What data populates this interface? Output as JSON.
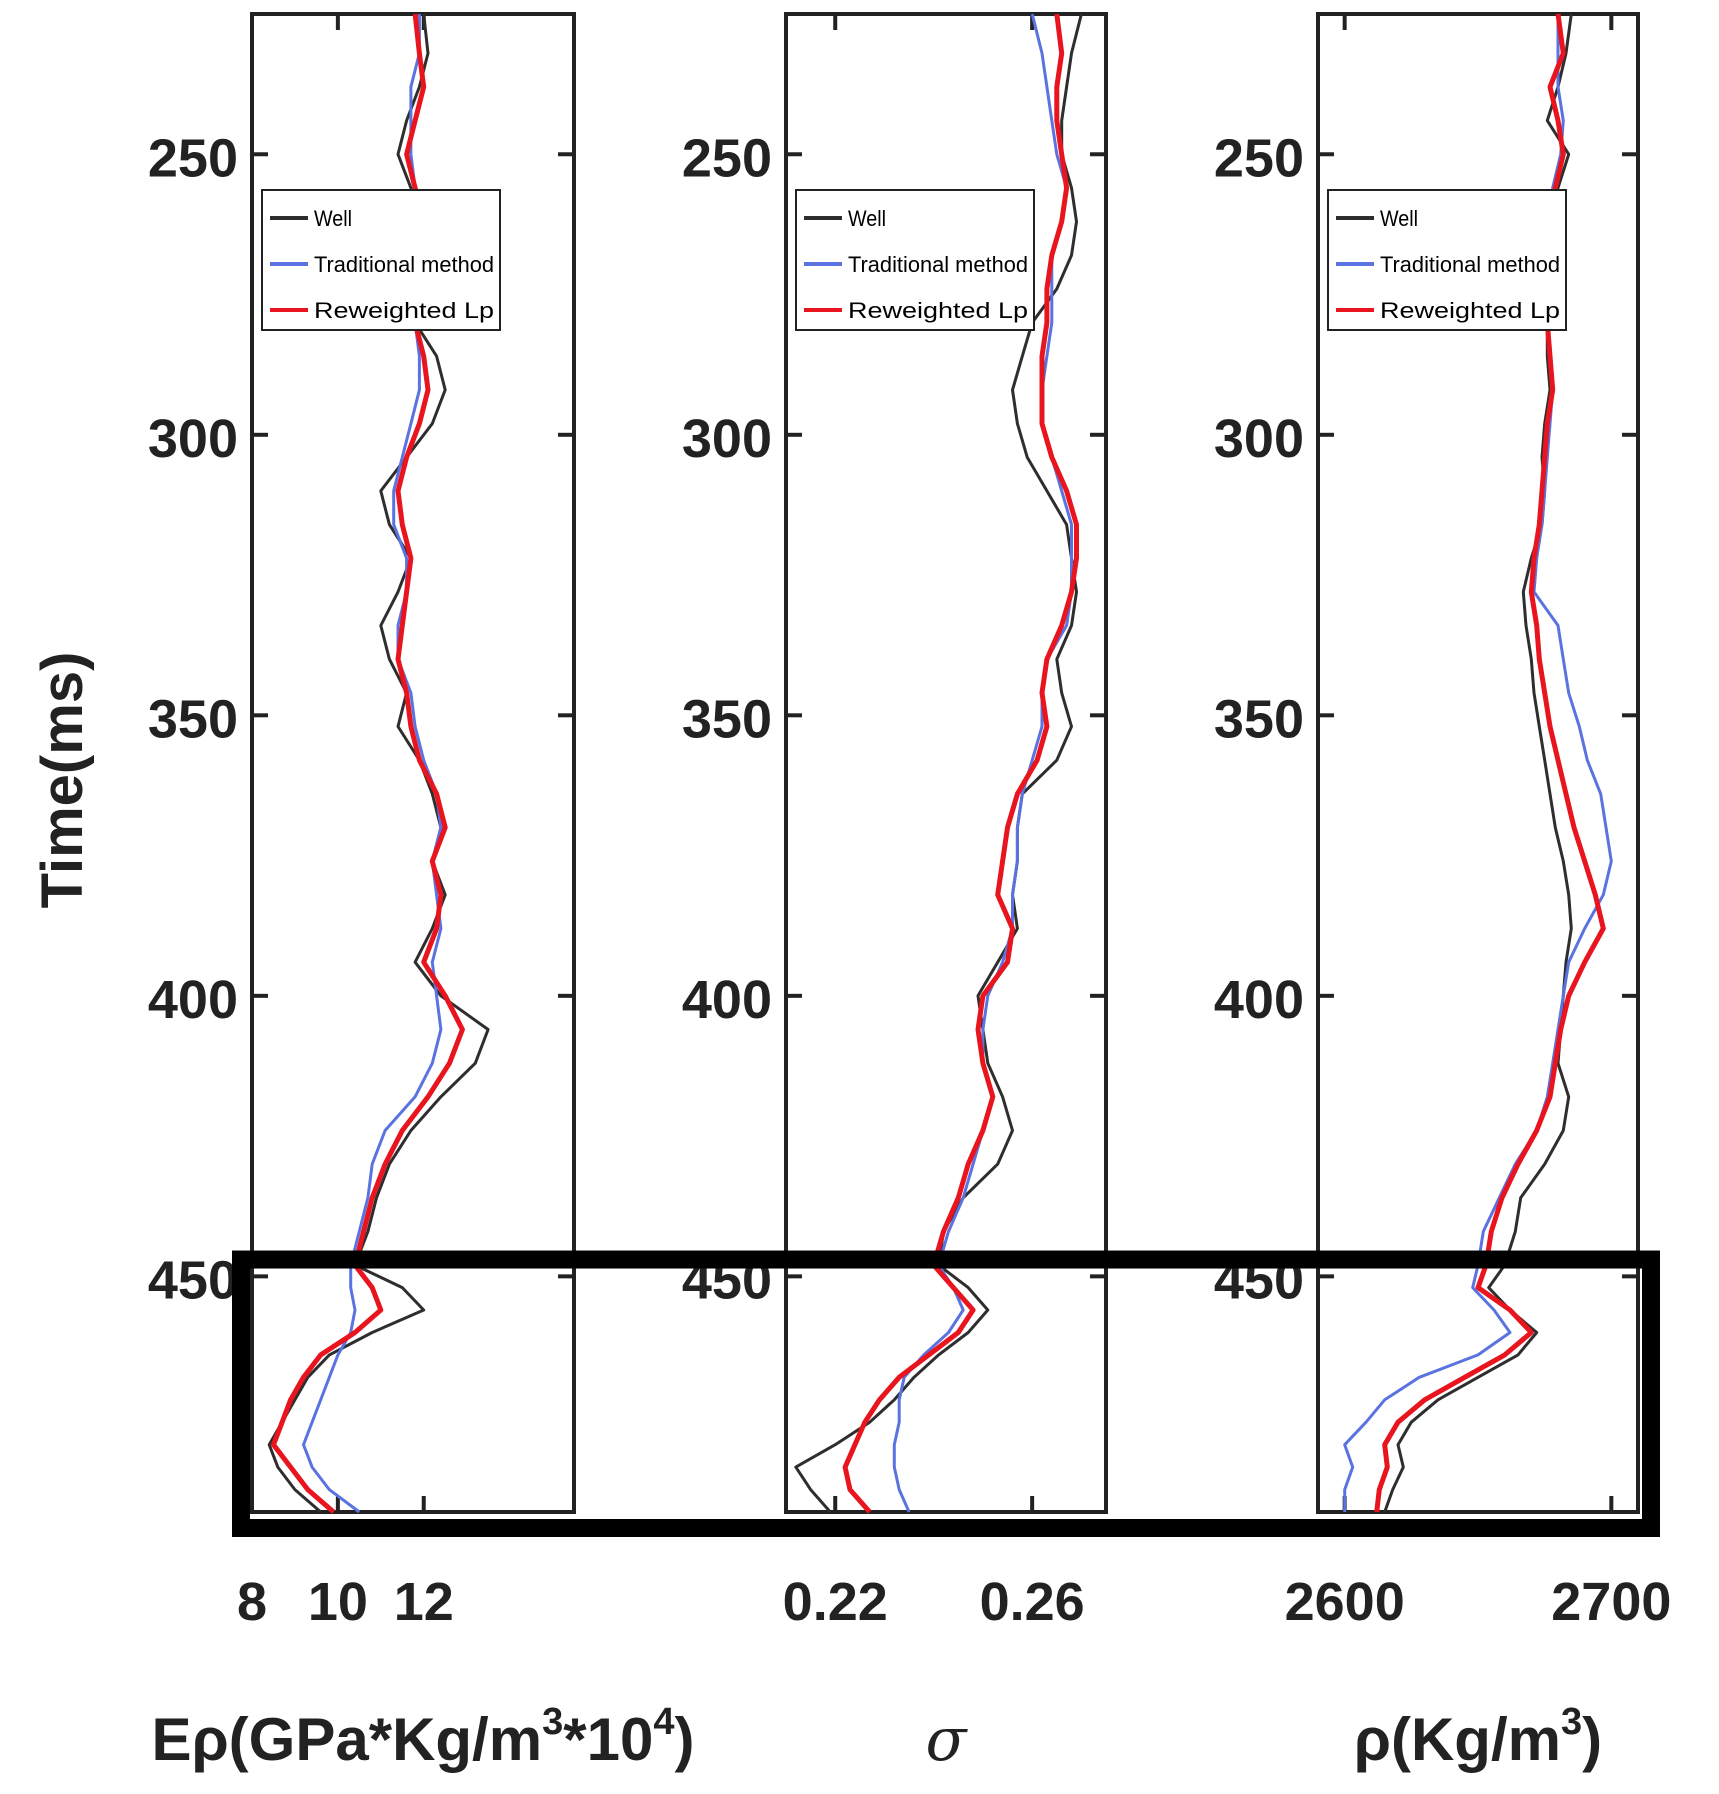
{
  "chart_data": {
    "type": "line",
    "ylabel": "Time(ms)",
    "y_range_ms": [
      225,
      492
    ],
    "y_ticks": [
      250,
      300,
      350,
      400,
      450
    ],
    "y_direction": "downward",
    "highlight_box_ms": [
      447,
      492
    ],
    "legend_entries": [
      "Well",
      "Traditional method",
      "Reweighted Lp"
    ],
    "series_colors": {
      "Well": "#2e2e2e",
      "Traditional method": "#5a73e0",
      "Reweighted Lp": "#e8141e"
    },
    "panels": [
      {
        "id": "e-rho",
        "xlabel_main": "Eρ(GPa*Kg/m",
        "xlabel_sup1": "3",
        "xlabel_mid": "*10",
        "xlabel_sup2": "4",
        "xlabel_end": ")",
        "x_range": [
          8,
          15.5
        ],
        "x_ticks": [
          8,
          10,
          12
        ],
        "x_tick_labels": [
          "8",
          "10",
          "12"
        ],
        "legend_placement": "top-left",
        "time": [
          225,
          232,
          238,
          244,
          250,
          256,
          262,
          268,
          274,
          280,
          286,
          292,
          298,
          304,
          310,
          316,
          322,
          328,
          334,
          340,
          346,
          352,
          358,
          364,
          370,
          376,
          382,
          388,
          394,
          400,
          406,
          412,
          418,
          424,
          430,
          436,
          442,
          448,
          452,
          456,
          460,
          464,
          468,
          472,
          476,
          480,
          484,
          488,
          492
        ],
        "series": [
          {
            "name": "Well",
            "values": [
              12.0,
              12.1,
              11.9,
              11.6,
              11.4,
              11.7,
              12.0,
              11.8,
              11.5,
              11.8,
              12.3,
              12.5,
              12.2,
              11.6,
              11.0,
              11.2,
              11.7,
              11.4,
              11.0,
              11.2,
              11.6,
              11.4,
              11.9,
              12.2,
              12.4,
              12.2,
              12.5,
              12.2,
              11.8,
              12.4,
              13.5,
              13.2,
              12.4,
              11.7,
              11.2,
              10.9,
              10.7,
              10.4,
              11.5,
              12.0,
              10.8,
              9.8,
              9.3,
              9.0,
              8.7,
              8.4,
              8.6,
              9.0,
              9.6
            ]
          },
          {
            "name": "Traditional method",
            "values": [
              11.9,
              11.9,
              11.7,
              11.7,
              11.7,
              11.8,
              11.9,
              11.9,
              11.8,
              11.8,
              11.9,
              11.9,
              11.7,
              11.5,
              11.3,
              11.3,
              11.6,
              11.6,
              11.4,
              11.4,
              11.7,
              11.8,
              12.0,
              12.3,
              12.4,
              12.2,
              12.3,
              12.4,
              12.2,
              12.3,
              12.4,
              12.2,
              11.8,
              11.1,
              10.8,
              10.7,
              10.5,
              10.3,
              10.3,
              10.4,
              10.3,
              10.0,
              9.8,
              9.6,
              9.4,
              9.2,
              9.4,
              9.8,
              10.5
            ]
          },
          {
            "name": "Reweighted Lp",
            "values": [
              11.8,
              11.9,
              12.0,
              11.8,
              11.6,
              11.8,
              12.0,
              11.9,
              11.8,
              11.8,
              12.0,
              12.1,
              11.9,
              11.6,
              11.4,
              11.5,
              11.7,
              11.6,
              11.5,
              11.4,
              11.6,
              11.7,
              11.9,
              12.3,
              12.5,
              12.2,
              12.4,
              12.3,
              12.0,
              12.5,
              12.9,
              12.6,
              12.1,
              11.5,
              11.1,
              10.8,
              10.6,
              10.4,
              10.8,
              11.0,
              10.4,
              9.6,
              9.2,
              8.9,
              8.7,
              8.5,
              8.9,
              9.3,
              9.9
            ]
          }
        ]
      },
      {
        "id": "sigma",
        "xlabel_main": "σ",
        "x_range": [
          0.21,
          0.275
        ],
        "x_ticks": [
          0.22,
          0.26
        ],
        "x_tick_labels": [
          "0.22",
          "0.26"
        ],
        "legend_placement": "top-left",
        "time": [
          225,
          232,
          238,
          244,
          250,
          256,
          262,
          268,
          274,
          280,
          286,
          292,
          298,
          304,
          310,
          316,
          322,
          328,
          334,
          340,
          346,
          352,
          358,
          364,
          370,
          376,
          382,
          388,
          394,
          400,
          406,
          412,
          418,
          424,
          430,
          436,
          442,
          448,
          452,
          456,
          460,
          464,
          468,
          472,
          476,
          480,
          484,
          488,
          492
        ],
        "series": [
          {
            "name": "Well",
            "values": [
              0.27,
              0.268,
              0.267,
              0.266,
              0.266,
              0.268,
              0.269,
              0.268,
              0.265,
              0.26,
              0.258,
              0.256,
              0.257,
              0.259,
              0.263,
              0.267,
              0.268,
              0.269,
              0.268,
              0.265,
              0.266,
              0.268,
              0.265,
              0.258,
              0.257,
              0.257,
              0.256,
              0.257,
              0.253,
              0.249,
              0.25,
              0.251,
              0.254,
              0.256,
              0.253,
              0.246,
              0.242,
              0.241,
              0.247,
              0.251,
              0.247,
              0.241,
              0.236,
              0.232,
              0.227,
              0.22,
              0.212,
              0.215,
              0.219
            ]
          },
          {
            "name": "Traditional method",
            "values": [
              0.26,
              0.262,
              0.263,
              0.264,
              0.265,
              0.267,
              0.266,
              0.264,
              0.264,
              0.264,
              0.263,
              0.262,
              0.262,
              0.264,
              0.266,
              0.268,
              0.268,
              0.268,
              0.267,
              0.263,
              0.262,
              0.262,
              0.26,
              0.258,
              0.257,
              0.257,
              0.256,
              0.256,
              0.254,
              0.251,
              0.25,
              0.25,
              0.252,
              0.25,
              0.248,
              0.246,
              0.243,
              0.241,
              0.244,
              0.246,
              0.243,
              0.238,
              0.234,
              0.233,
              0.233,
              0.232,
              0.232,
              0.233,
              0.235
            ]
          },
          {
            "name": "Reweighted Lp",
            "values": [
              0.265,
              0.266,
              0.265,
              0.265,
              0.266,
              0.267,
              0.266,
              0.264,
              0.263,
              0.263,
              0.262,
              0.262,
              0.262,
              0.264,
              0.267,
              0.269,
              0.269,
              0.268,
              0.266,
              0.263,
              0.262,
              0.263,
              0.261,
              0.257,
              0.255,
              0.254,
              0.253,
              0.256,
              0.255,
              0.25,
              0.249,
              0.25,
              0.252,
              0.25,
              0.247,
              0.245,
              0.242,
              0.24,
              0.244,
              0.248,
              0.245,
              0.239,
              0.233,
              0.229,
              0.226,
              0.224,
              0.222,
              0.223,
              0.227
            ]
          }
        ]
      },
      {
        "id": "rho",
        "xlabel_main": "ρ(Kg/m",
        "xlabel_sup1": "3",
        "xlabel_end": ")",
        "x_range": [
          2590,
          2710
        ],
        "x_ticks": [
          2600,
          2700
        ],
        "x_tick_labels": [
          "2600",
          "2700"
        ],
        "legend_placement": "top-left",
        "time": [
          225,
          232,
          238,
          244,
          250,
          256,
          262,
          268,
          274,
          280,
          286,
          292,
          298,
          304,
          310,
          316,
          322,
          328,
          334,
          340,
          346,
          352,
          358,
          364,
          370,
          376,
          382,
          388,
          394,
          400,
          406,
          412,
          418,
          424,
          430,
          436,
          442,
          448,
          452,
          456,
          460,
          464,
          468,
          472,
          476,
          480,
          484,
          488,
          492
        ],
        "series": [
          {
            "name": "Well",
            "values": [
              2685,
              2683,
              2680,
              2676,
              2684,
              2680,
              2675,
              2676,
              2676,
              2676,
              2676,
              2677,
              2675,
              2674,
              2675,
              2674,
              2670,
              2667,
              2668,
              2670,
              2671,
              2673,
              2675,
              2677,
              2679,
              2682,
              2684,
              2685,
              2683,
              2682,
              2681,
              2680,
              2684,
              2682,
              2675,
              2666,
              2664,
              2660,
              2654,
              2662,
              2672,
              2665,
              2650,
              2635,
              2625,
              2620,
              2622,
              2618,
              2615
            ]
          },
          {
            "name": "Traditional method",
            "values": [
              2680,
              2680,
              2680,
              2682,
              2681,
              2678,
              2676,
              2676,
              2675,
              2676,
              2677,
              2678,
              2677,
              2676,
              2675,
              2674,
              2672,
              2671,
              2680,
              2682,
              2684,
              2688,
              2691,
              2696,
              2698,
              2700,
              2697,
              2690,
              2684,
              2682,
              2680,
              2678,
              2676,
              2672,
              2664,
              2658,
              2652,
              2650,
              2648,
              2656,
              2662,
              2650,
              2628,
              2615,
              2608,
              2600,
              2603,
              2600,
              2600
            ]
          },
          {
            "name": "Reweighted Lp",
            "values": [
              2680,
              2682,
              2677,
              2680,
              2682,
              2679,
              2676,
              2676,
              2675,
              2676,
              2677,
              2678,
              2676,
              2675,
              2674,
              2673,
              2671,
              2670,
              2672,
              2673,
              2675,
              2677,
              2680,
              2683,
              2686,
              2690,
              2694,
              2697,
              2690,
              2684,
              2681,
              2679,
              2677,
              2672,
              2665,
              2659,
              2655,
              2653,
              2650,
              2662,
              2670,
              2660,
              2645,
              2630,
              2620,
              2615,
              2616,
              2613,
              2612
            ]
          }
        ]
      }
    ]
  }
}
